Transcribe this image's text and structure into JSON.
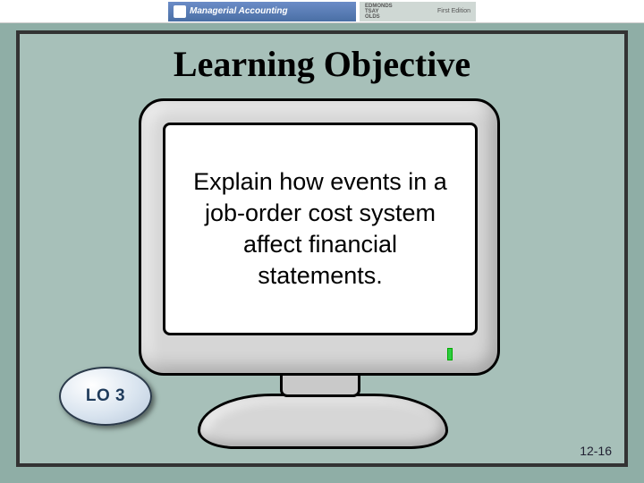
{
  "header": {
    "book_title": "Managerial Accounting",
    "subtitle": "CONCEPTS",
    "authors": "EDMONDS\nTSAY\nOLDS",
    "edition": "First Edition"
  },
  "slide": {
    "title": "Learning Objective",
    "body": "Explain how events in a job-order cost system affect financial statements.",
    "lo_label": "LO 3",
    "page_number": "12-16"
  },
  "colors": {
    "slide_bg": "#a7c0b9",
    "page_bg": "#8faea6",
    "frame_border": "#333333",
    "monitor_case": "#d6d6d6",
    "screen_bg": "#ffffff",
    "led": "#2ecc40",
    "badge_text": "#1f3b5b"
  }
}
